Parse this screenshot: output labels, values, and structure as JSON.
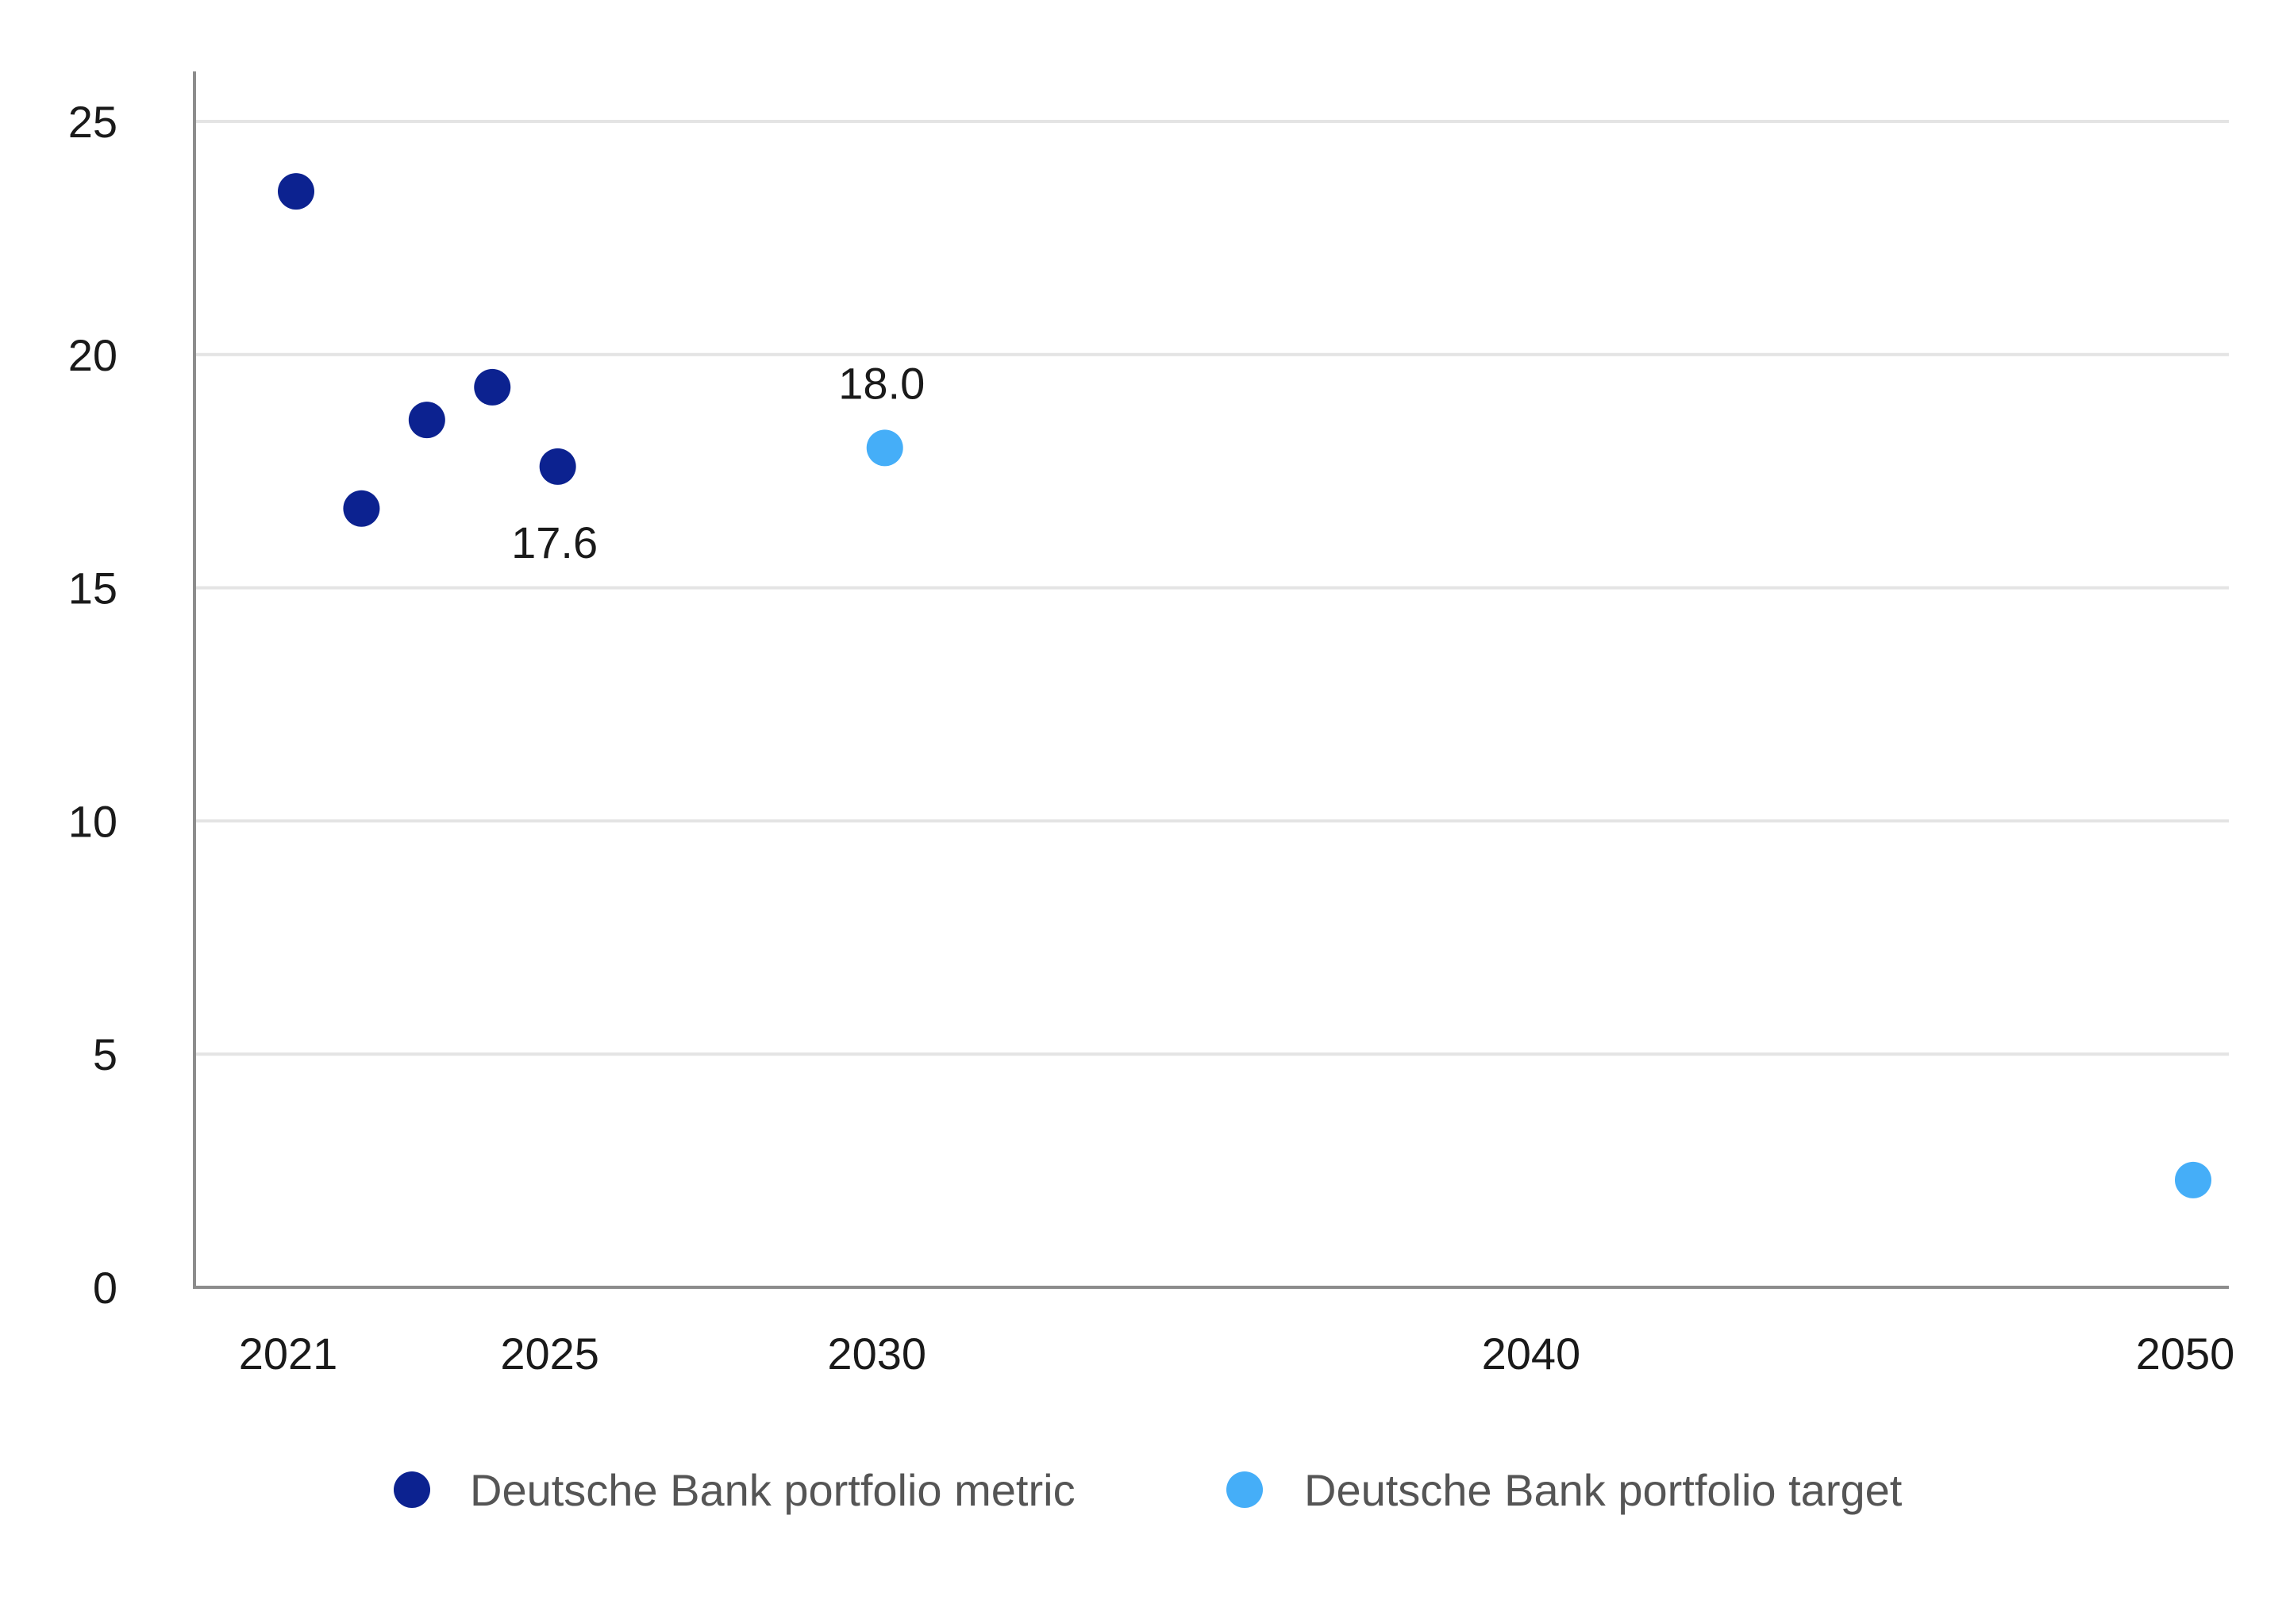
{
  "chart_data": {
    "type": "scatter",
    "title": "",
    "xlabel": "",
    "ylabel": "",
    "xlim": [
      2019.6,
      2050.6
    ],
    "ylim": [
      0,
      26
    ],
    "x_ticks": [
      {
        "value": 2021,
        "label": "2021"
      },
      {
        "value": 2025,
        "label": "2025"
      },
      {
        "value": 2030,
        "label": "2030"
      },
      {
        "value": 2040,
        "label": "2040"
      },
      {
        "value": 2050,
        "label": "2050"
      }
    ],
    "y_ticks": [
      {
        "value": 0,
        "label": "0"
      },
      {
        "value": 5,
        "label": "5"
      },
      {
        "value": 10,
        "label": "10"
      },
      {
        "value": 15,
        "label": "15"
      },
      {
        "value": 20,
        "label": "20"
      },
      {
        "value": 25,
        "label": "25"
      }
    ],
    "grid": true,
    "legend_position": "bottom",
    "series": [
      {
        "name": "Deutsche Bank portfolio metric",
        "color": "#0c2290",
        "points": [
          {
            "x": 2021,
            "y": 23.5,
            "label": ""
          },
          {
            "x": 2022,
            "y": 16.7,
            "label": ""
          },
          {
            "x": 2023,
            "y": 18.6,
            "label": ""
          },
          {
            "x": 2024,
            "y": 19.3,
            "label": ""
          },
          {
            "x": 2025,
            "y": 17.6,
            "label": "17.6"
          }
        ]
      },
      {
        "name": "Deutsche Bank portfolio target",
        "color": "#45aef8",
        "points": [
          {
            "x": 2030,
            "y": 18.0,
            "label": "18.0"
          },
          {
            "x": 2050,
            "y": 2.3,
            "label": ""
          }
        ]
      }
    ]
  },
  "colors": {
    "gridline": "#e4e4e4",
    "axis": "#8c8c8c",
    "tick_text": "#1a1a1a",
    "legend_text": "#555555"
  }
}
